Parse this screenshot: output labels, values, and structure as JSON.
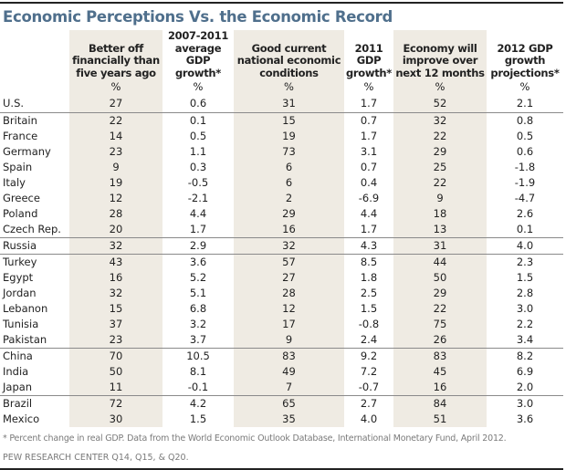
{
  "title": "Economic Perceptions Vs. the Economic Record",
  "columns": [
    {
      "label": "Better off financially than five years ago",
      "unit": "%"
    },
    {
      "label": "2007-2011 average GDP growth*",
      "unit": "%"
    },
    {
      "label": "Good current national economic conditions",
      "unit": "%"
    },
    {
      "label": "2011 GDP growth*",
      "unit": "%"
    },
    {
      "label": "Economy will improve over next 12 months",
      "unit": "%"
    },
    {
      "label": "2012 GDP growth projections*",
      "unit": "%"
    }
  ],
  "rows": [
    {
      "country": "U.S.",
      "values": [
        "27",
        "0.6",
        "31",
        "1.7",
        "52",
        "2.1"
      ]
    },
    {
      "country": "Britain",
      "values": [
        "22",
        "0.1",
        "15",
        "0.7",
        "32",
        "0.8"
      ]
    },
    {
      "country": "France",
      "values": [
        "14",
        "0.5",
        "19",
        "1.7",
        "22",
        "0.5"
      ]
    },
    {
      "country": "Germany",
      "values": [
        "23",
        "1.1",
        "73",
        "3.1",
        "29",
        "0.6"
      ]
    },
    {
      "country": "Spain",
      "values": [
        "9",
        "0.3",
        "6",
        "0.7",
        "25",
        "-1.8"
      ]
    },
    {
      "country": "Italy",
      "values": [
        "19",
        "-0.5",
        "6",
        "0.4",
        "22",
        "-1.9"
      ]
    },
    {
      "country": "Greece",
      "values": [
        "12",
        "-2.1",
        "2",
        "-6.9",
        "9",
        "-4.7"
      ]
    },
    {
      "country": "Poland",
      "values": [
        "28",
        "4.4",
        "29",
        "4.4",
        "18",
        "2.6"
      ]
    },
    {
      "country": "Czech Rep.",
      "values": [
        "20",
        "1.7",
        "16",
        "1.7",
        "13",
        "0.1"
      ]
    },
    {
      "country": "Russia",
      "values": [
        "32",
        "2.9",
        "32",
        "4.3",
        "31",
        "4.0"
      ]
    },
    {
      "country": "Turkey",
      "values": [
        "43",
        "3.6",
        "57",
        "8.5",
        "44",
        "2.3"
      ]
    },
    {
      "country": "Egypt",
      "values": [
        "16",
        "5.2",
        "27",
        "1.8",
        "50",
        "1.5"
      ]
    },
    {
      "country": "Jordan",
      "values": [
        "32",
        "5.1",
        "28",
        "2.5",
        "29",
        "2.8"
      ]
    },
    {
      "country": "Lebanon",
      "values": [
        "15",
        "6.8",
        "12",
        "1.5",
        "22",
        "3.0"
      ]
    },
    {
      "country": "Tunisia",
      "values": [
        "37",
        "3.2",
        "17",
        "-0.8",
        "75",
        "2.2"
      ]
    },
    {
      "country": "Pakistan",
      "values": [
        "23",
        "3.7",
        "9",
        "2.4",
        "26",
        "3.4"
      ]
    },
    {
      "country": "China",
      "values": [
        "70",
        "10.5",
        "83",
        "9.2",
        "83",
        "8.2"
      ]
    },
    {
      "country": "India",
      "values": [
        "50",
        "8.1",
        "49",
        "7.2",
        "45",
        "6.9"
      ]
    },
    {
      "country": "Japan",
      "values": [
        "11",
        "-0.1",
        "7",
        "-0.7",
        "16",
        "2.0"
      ]
    },
    {
      "country": "Brazil",
      "values": [
        "72",
        "4.2",
        "65",
        "2.7",
        "84",
        "3.0"
      ]
    },
    {
      "country": "Mexico",
      "values": [
        "30",
        "1.5",
        "35",
        "4.0",
        "51",
        "3.6"
      ]
    }
  ],
  "footnote": "* Percent change in real GDP.  Data from the World Economic Outlook Database, International Monetary Fund, April 2012.",
  "source": "PEW RESEARCH  CENTER Q14, Q15, & Q20.",
  "colors": {
    "title": "#4f6f8c",
    "shade": "#efebe3"
  }
}
